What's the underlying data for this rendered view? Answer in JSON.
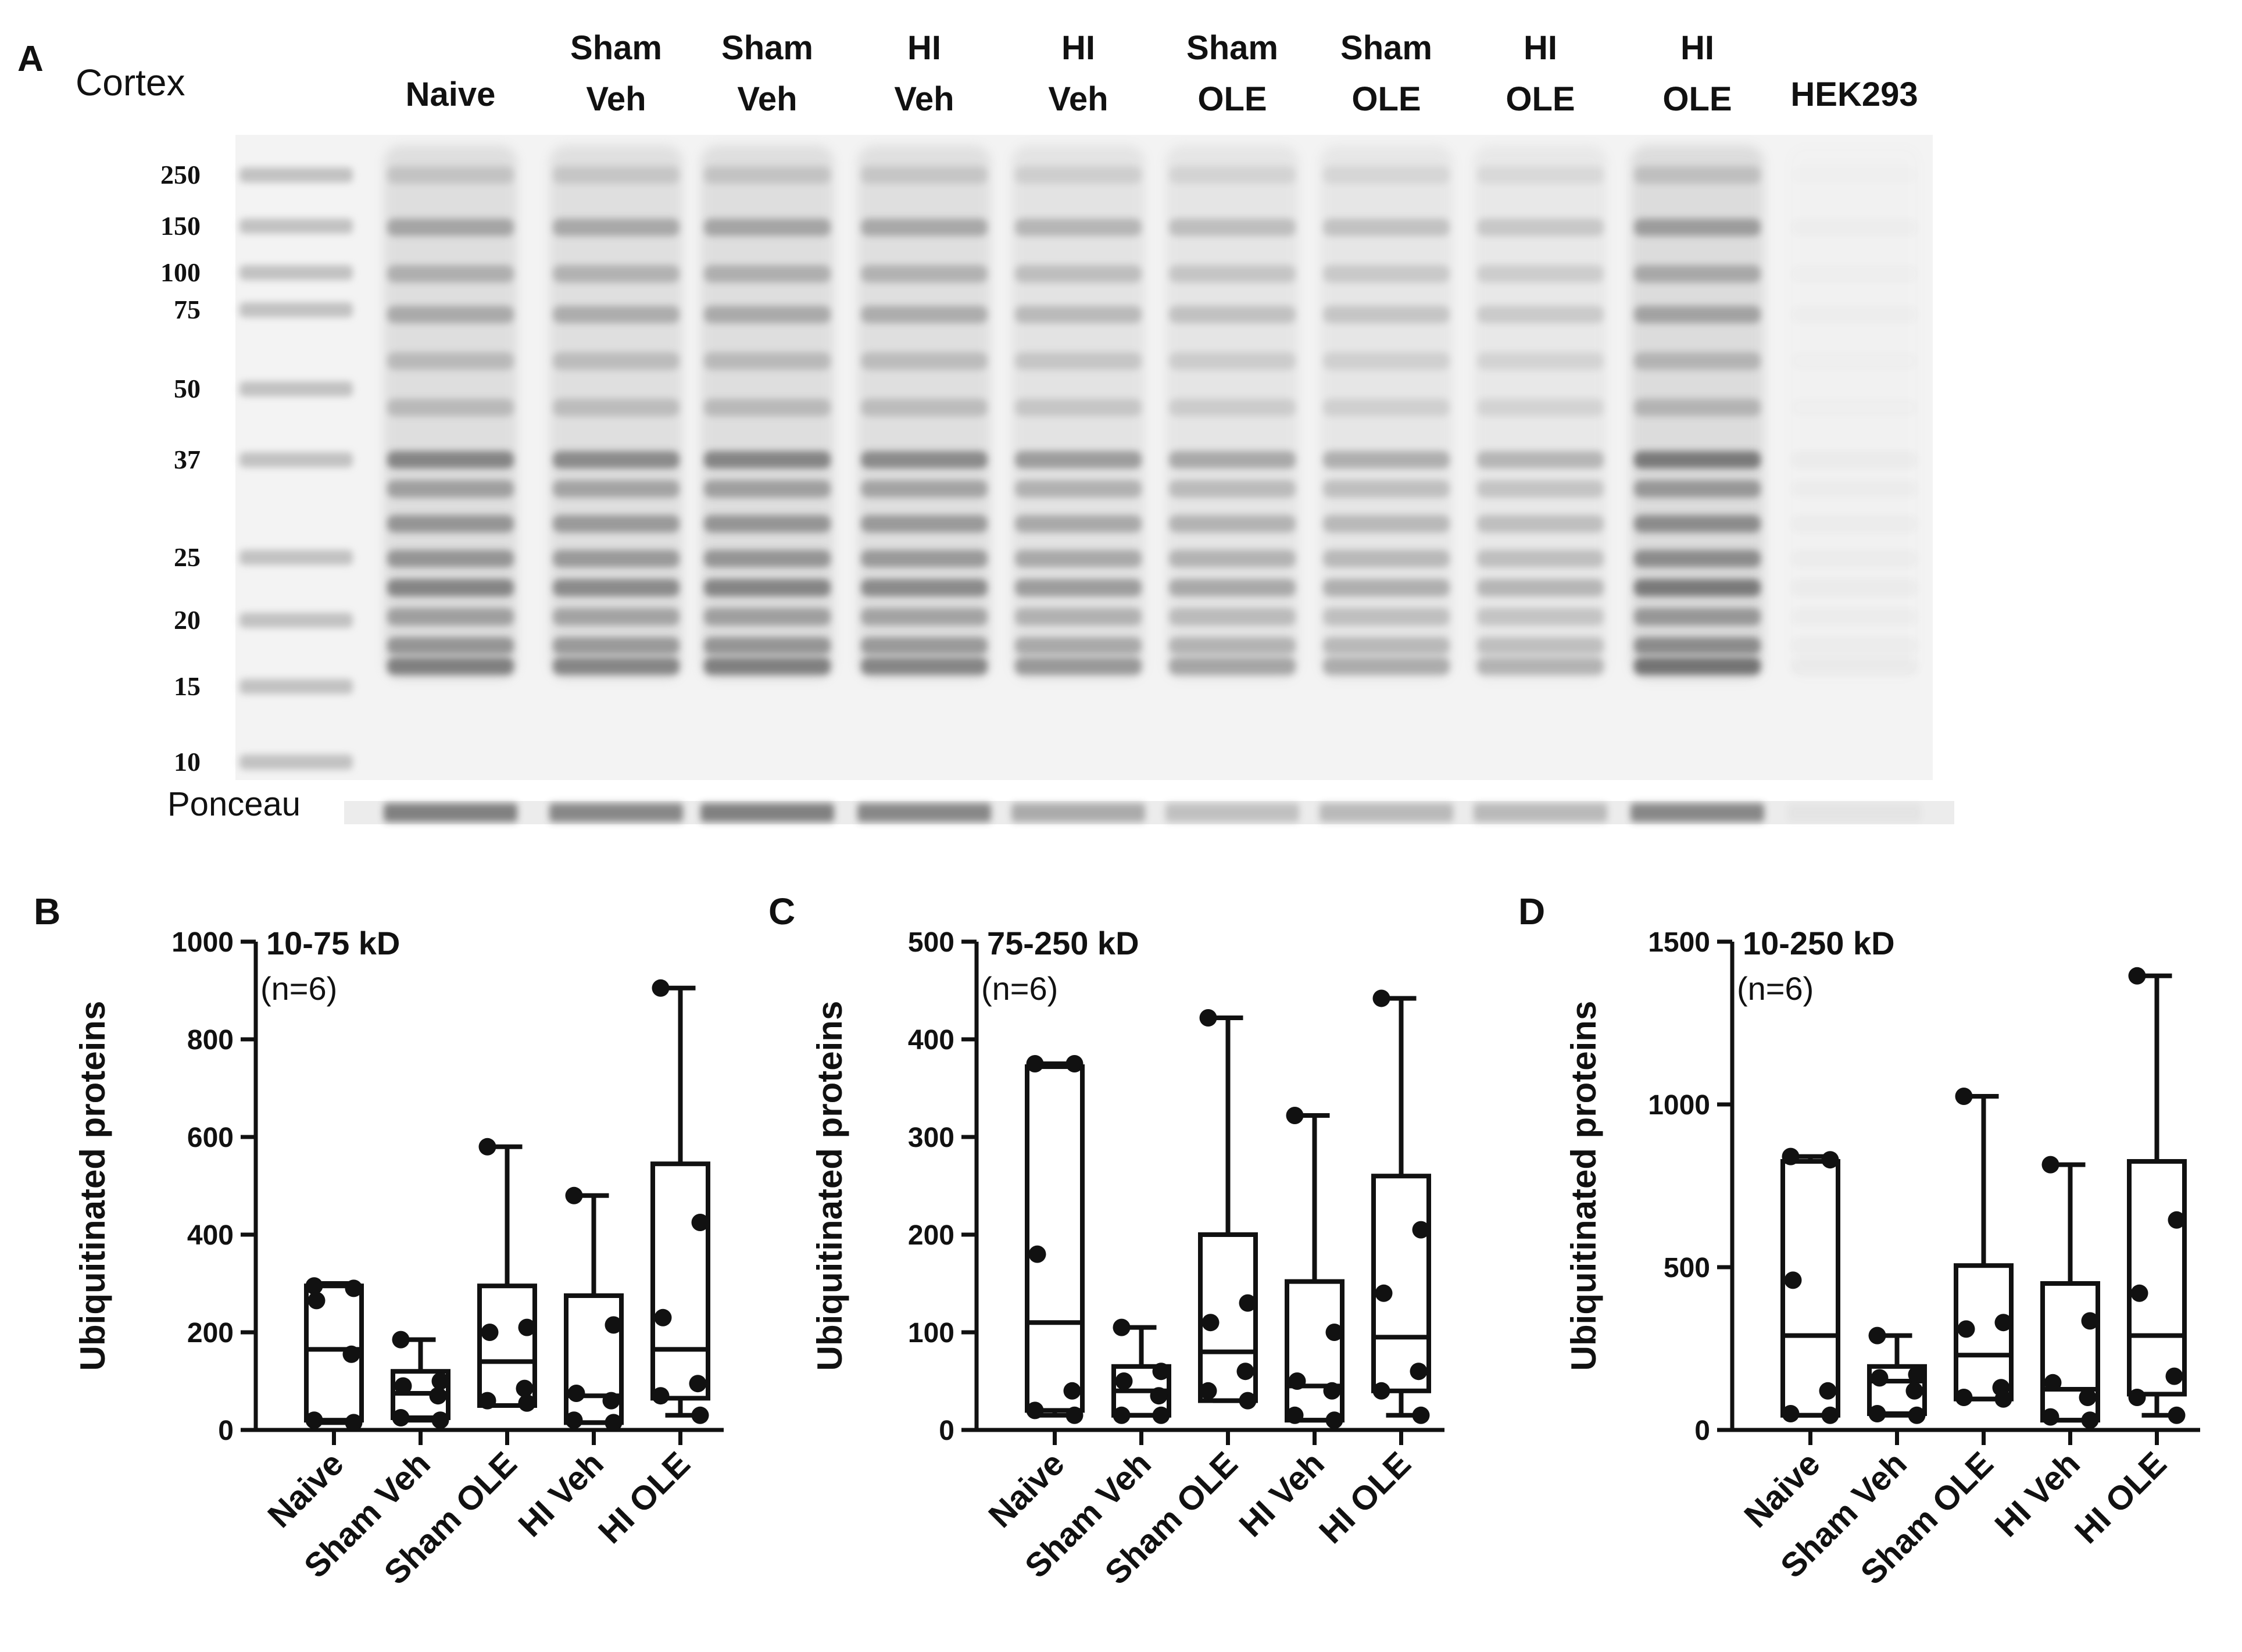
{
  "panel_a": {
    "letter": "A",
    "region": "Cortex",
    "loading_label": "Ponceau",
    "lanes": [
      {
        "line1": "Naive",
        "line2": ""
      },
      {
        "line1": "Sham",
        "line2": "Veh"
      },
      {
        "line1": "Sham",
        "line2": "Veh"
      },
      {
        "line1": "HI",
        "line2": "Veh"
      },
      {
        "line1": "HI",
        "line2": "Veh"
      },
      {
        "line1": "Sham",
        "line2": "OLE"
      },
      {
        "line1": "Sham",
        "line2": "OLE"
      },
      {
        "line1": "HI",
        "line2": "OLE"
      },
      {
        "line1": "HI",
        "line2": "OLE"
      },
      {
        "line1": "HEK293",
        "line2": ""
      }
    ],
    "lane_intensity": [
      0.85,
      0.8,
      0.85,
      0.8,
      0.65,
      0.55,
      0.5,
      0.45,
      0.95,
      0.05
    ],
    "ponceau_intensity": [
      0.75,
      0.7,
      0.75,
      0.7,
      0.45,
      0.3,
      0.35,
      0.35,
      0.7,
      0.05
    ],
    "mw_markers": [
      "250",
      "150",
      "100",
      "75",
      "50",
      "37",
      "25",
      "20",
      "15",
      "10"
    ],
    "mw_kd": [
      250,
      150,
      100,
      75,
      50,
      37,
      25,
      20,
      15,
      10
    ]
  },
  "chart_data": [
    {
      "panel": "B",
      "type": "box",
      "title": "10-75 kD",
      "subtitle": "(n=6)",
      "ylabel": "Ubiquitinated proteins",
      "ylim": [
        0,
        1000
      ],
      "yticks": [
        0,
        200,
        400,
        600,
        800,
        1000
      ],
      "ytick_labels": [
        "0",
        "200",
        "400",
        "600",
        "800",
        "1000"
      ],
      "categories": [
        "Naive",
        "Sham Veh",
        "Sham OLE",
        "HI Veh",
        "HI OLE"
      ],
      "boxes": [
        {
          "min": 15,
          "q1": 20,
          "median": 165,
          "q3": 295,
          "max": 300,
          "points": [
            295,
            290,
            265,
            155,
            20,
            15
          ]
        },
        {
          "min": 20,
          "q1": 25,
          "median": 75,
          "q3": 120,
          "max": 185,
          "points": [
            185,
            100,
            90,
            70,
            25,
            20
          ]
        },
        {
          "min": 50,
          "q1": 50,
          "median": 140,
          "q3": 295,
          "max": 580,
          "points": [
            580,
            210,
            200,
            85,
            60,
            55
          ]
        },
        {
          "min": 15,
          "q1": 15,
          "median": 70,
          "q3": 275,
          "max": 480,
          "points": [
            480,
            215,
            75,
            60,
            20,
            15
          ]
        },
        {
          "min": 30,
          "q1": 65,
          "median": 165,
          "q3": 545,
          "max": 905,
          "points": [
            905,
            425,
            230,
            95,
            70,
            30
          ]
        }
      ]
    },
    {
      "panel": "C",
      "type": "box",
      "title": "75-250 kD",
      "subtitle": "(n=6)",
      "ylabel": "Ubiquitinated proteins",
      "ylim": [
        0,
        500
      ],
      "yticks": [
        0,
        100,
        200,
        300,
        400,
        500
      ],
      "ytick_labels": [
        "0",
        "100",
        "200",
        "300",
        "400",
        "500"
      ],
      "categories": [
        "Naive",
        "Sham Veh",
        "Sham OLE",
        "HI Veh",
        "HI OLE"
      ],
      "boxes": [
        {
          "min": 15,
          "q1": 20,
          "median": 110,
          "q3": 372,
          "max": 375,
          "points": [
            375,
            375,
            180,
            40,
            20,
            15
          ]
        },
        {
          "min": 15,
          "q1": 15,
          "median": 40,
          "q3": 65,
          "max": 105,
          "points": [
            105,
            60,
            50,
            35,
            15,
            15
          ]
        },
        {
          "min": 30,
          "q1": 30,
          "median": 80,
          "q3": 200,
          "max": 422,
          "points": [
            422,
            130,
            110,
            60,
            40,
            30
          ]
        },
        {
          "min": 10,
          "q1": 10,
          "median": 45,
          "q3": 152,
          "max": 322,
          "points": [
            322,
            100,
            50,
            40,
            15,
            10
          ]
        },
        {
          "min": 15,
          "q1": 40,
          "median": 95,
          "q3": 260,
          "max": 442,
          "points": [
            442,
            205,
            140,
            60,
            40,
            15
          ]
        }
      ]
    },
    {
      "panel": "D",
      "type": "box",
      "title": "10-250 kD",
      "subtitle": "(n=6)",
      "ylabel": "Ubiquitinated proteins",
      "ylim": [
        0,
        1500
      ],
      "yticks": [
        0,
        500,
        1000,
        1500
      ],
      "ytick_labels": [
        "0",
        "500",
        "1000",
        "1500"
      ],
      "categories": [
        "Naive",
        "Sham Veh",
        "Sham OLE",
        "HI Veh",
        "HI OLE"
      ],
      "boxes": [
        {
          "min": 45,
          "q1": 45,
          "median": 290,
          "q3": 825,
          "max": 840,
          "points": [
            840,
            830,
            460,
            120,
            50,
            45
          ]
        },
        {
          "min": 45,
          "q1": 50,
          "median": 150,
          "q3": 195,
          "max": 290,
          "points": [
            290,
            170,
            160,
            120,
            50,
            45
          ]
        },
        {
          "min": 95,
          "q1": 95,
          "median": 230,
          "q3": 505,
          "max": 1025,
          "points": [
            1025,
            330,
            310,
            130,
            100,
            95
          ]
        },
        {
          "min": 30,
          "q1": 30,
          "median": 125,
          "q3": 450,
          "max": 815,
          "points": [
            815,
            335,
            145,
            100,
            40,
            30
          ]
        },
        {
          "min": 45,
          "q1": 110,
          "median": 290,
          "q3": 825,
          "max": 1395,
          "points": [
            1395,
            645,
            420,
            165,
            100,
            45
          ]
        }
      ]
    }
  ]
}
